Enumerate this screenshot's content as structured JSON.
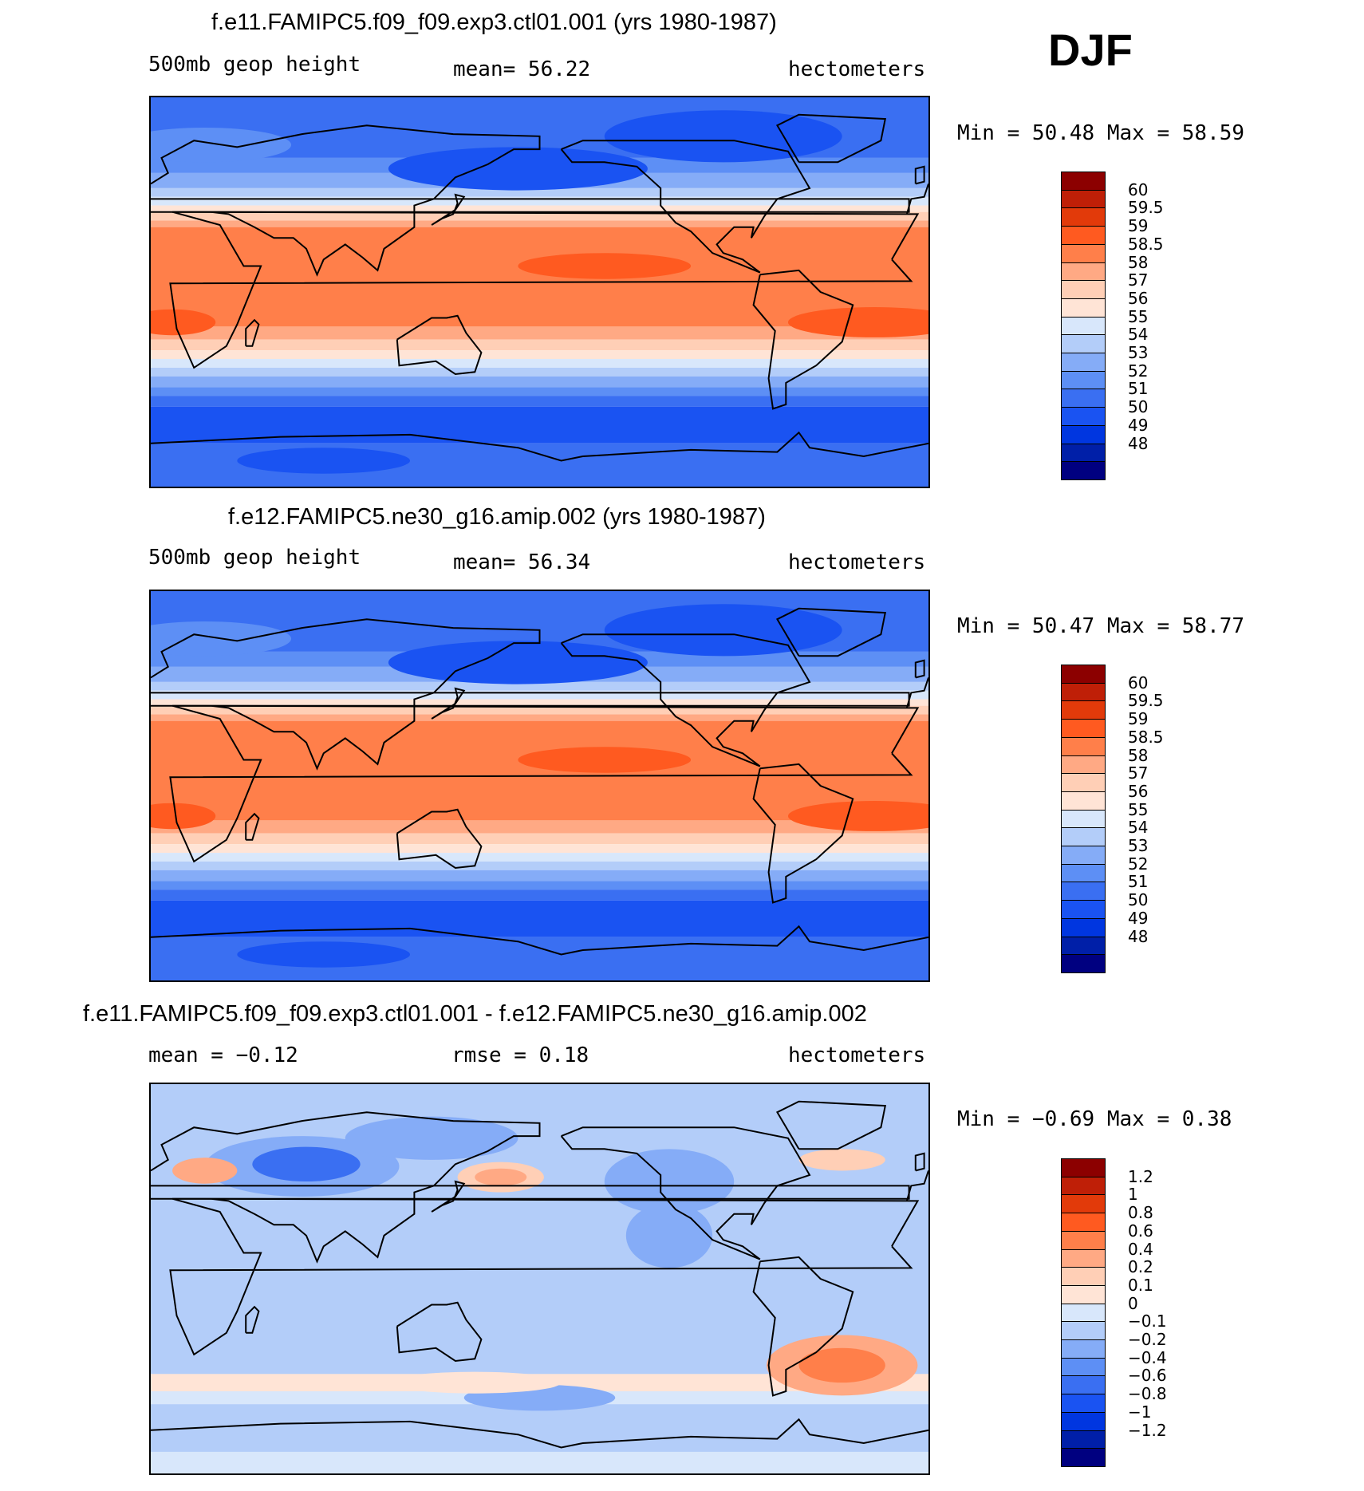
{
  "season": "DJF",
  "colors": {
    "full": [
      "#000080",
      "#001fa8",
      "#0036e0",
      "#1a53f2",
      "#3a6ff2",
      "#5d8ff5",
      "#85acf7",
      "#b3cdf9",
      "#d8e7fb",
      "#ffe4d6",
      "#ffcfb6",
      "#ffa984",
      "#ff7f4a",
      "#ff5a20",
      "#e23a0a",
      "#bf1f07",
      "#8c0000"
    ],
    "diff": [
      "#000080",
      "#001fa8",
      "#0036e0",
      "#1a53f2",
      "#3a6ff2",
      "#5d8ff5",
      "#85acf7",
      "#b3cdf9",
      "#d8e7fb",
      "#ffe4d6",
      "#ffcfb6",
      "#ffa984",
      "#ff7f4a",
      "#ff5a20",
      "#e23a0a",
      "#bf1f07",
      "#8c0000"
    ]
  },
  "panels": [
    {
      "title": "f.e11.FAMIPC5.f09_f09.exp3.ctl01.001 (yrs 1980-1987)",
      "left_label": "500mb geop height",
      "center_label": "mean=   56.22",
      "right_label": "hectometers",
      "minmax": "Min =   50.48 Max =   58.59",
      "levels": [
        "60",
        "59.5",
        "59",
        "58.5",
        "58",
        "57",
        "56",
        "55",
        "54",
        "53",
        "52",
        "51",
        "50",
        "49",
        "48"
      ]
    },
    {
      "title": "f.e12.FAMIPC5.ne30_g16.amip.002 (yrs 1980-1987)",
      "left_label": "500mb geop height",
      "center_label": "mean=   56.34",
      "right_label": "hectometers",
      "minmax": "Min =   50.47 Max =   58.77",
      "levels": [
        "60",
        "59.5",
        "59",
        "58.5",
        "58",
        "57",
        "56",
        "55",
        "54",
        "53",
        "52",
        "51",
        "50",
        "49",
        "48"
      ]
    },
    {
      "title": "f.e11.FAMIPC5.f09_f09.exp3.ctl01.001 - f.e12.FAMIPC5.ne30_g16.amip.002",
      "left_label": "mean =   −0.12",
      "center_label": "rmse =    0.18",
      "right_label": "hectometers",
      "minmax": "Min =   −0.69 Max =    0.38",
      "levels": [
        "1.2",
        "1",
        "0.8",
        "0.6",
        "0.4",
        "0.2",
        "0.1",
        "0",
        "−0.1",
        "−0.2",
        "−0.4",
        "−0.6",
        "−0.8",
        "−1",
        "−1.2"
      ]
    }
  ],
  "chart_data": [
    {
      "type": "heatmap",
      "title": "f.e11.FAMIPC5.f09_f09.exp3.ctl01.001 (yrs 1980-1987)",
      "variable": "500mb geop height",
      "units": "hectometers",
      "mean": 56.22,
      "min": 50.48,
      "max": 58.59,
      "contour_levels": [
        48,
        49,
        50,
        51,
        52,
        53,
        54,
        55,
        56,
        57,
        58,
        58.5,
        59,
        59.5,
        60
      ]
    },
    {
      "type": "heatmap",
      "title": "f.e12.FAMIPC5.ne30_g16.amip.002 (yrs 1980-1987)",
      "variable": "500mb geop height",
      "units": "hectometers",
      "mean": 56.34,
      "min": 50.47,
      "max": 58.77,
      "contour_levels": [
        48,
        49,
        50,
        51,
        52,
        53,
        54,
        55,
        56,
        57,
        58,
        58.5,
        59,
        59.5,
        60
      ]
    },
    {
      "type": "heatmap",
      "title": "f.e11.FAMIPC5.f09_f09.exp3.ctl01.001 - f.e12.FAMIPC5.ne30_g16.amip.002",
      "units": "hectometers",
      "mean": -0.12,
      "rmse": 0.18,
      "min": -0.69,
      "max": 0.38,
      "contour_levels": [
        -1.2,
        -1,
        -0.8,
        -0.6,
        -0.4,
        -0.2,
        -0.1,
        0,
        0.1,
        0.2,
        0.4,
        0.6,
        0.8,
        1,
        1.2
      ]
    }
  ]
}
